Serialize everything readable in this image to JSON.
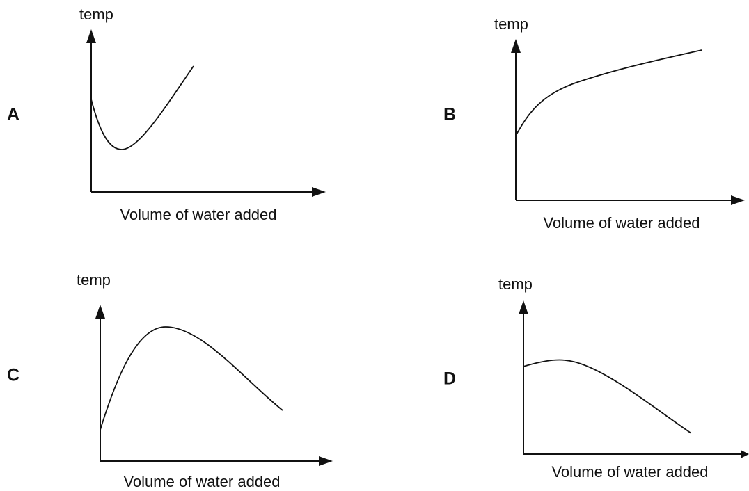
{
  "graphs": [
    {
      "letter": "A",
      "y_label": "temp",
      "x_label": "Volume of water added"
    },
    {
      "letter": "B",
      "y_label": "temp",
      "x_label": "Volume of water added"
    },
    {
      "letter": "C",
      "y_label": "temp",
      "x_label": "Volume of water added"
    },
    {
      "letter": "D",
      "y_label": "temp",
      "x_label": "Volume of water added"
    }
  ]
}
